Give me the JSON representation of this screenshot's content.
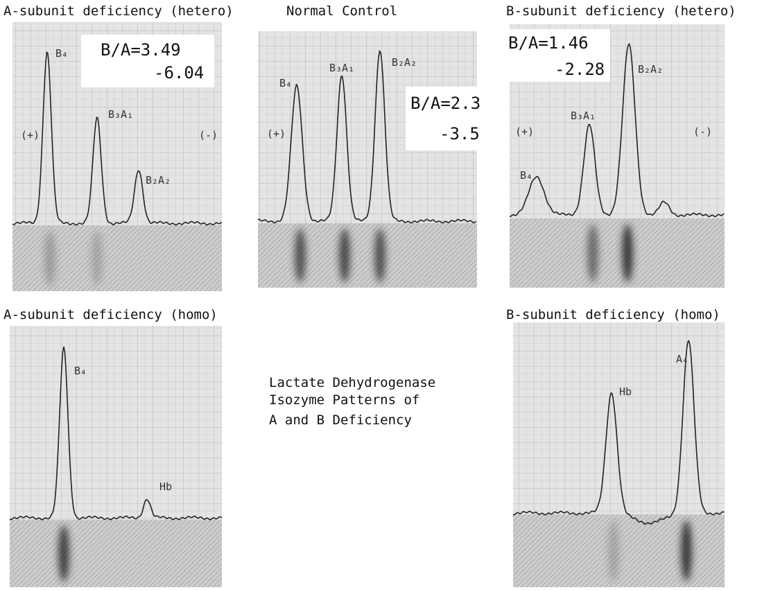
{
  "panels": [
    {
      "title": "A-subunit deficiency (hetero)",
      "ratio": [
        "B/A=3.49",
        "-6.04"
      ],
      "peak_labels": [
        "B₄",
        "B₃A₁",
        "B₂A₂"
      ],
      "polarity": [
        "(+)",
        "(-)"
      ]
    },
    {
      "title": "Normal Control",
      "ratio": [
        "B/A=2.3",
        "-3.5"
      ],
      "peak_labels": [
        "B₄",
        "B₃A₁",
        "B₂A₂"
      ],
      "polarity": [
        "(+)"
      ]
    },
    {
      "title": "B-subunit deficiency (hetero)",
      "ratio": [
        "B/A=1.46",
        "-2.28"
      ],
      "peak_labels": [
        "B₂A₂",
        "B₃A₁",
        "B₄"
      ],
      "polarity": [
        "(+)",
        "(-)"
      ]
    },
    {
      "title": "A-subunit deficiency (homo)",
      "peak_labels": [
        "B₄",
        "Hb"
      ]
    },
    {
      "title": "B-subunit deficiency (homo)",
      "peak_labels": [
        "Hb",
        "A₄"
      ]
    }
  ],
  "caption": [
    "Lactate Dehydrogenase",
    "Isozyme Patterns of",
    "A and B Deficiency"
  ]
}
